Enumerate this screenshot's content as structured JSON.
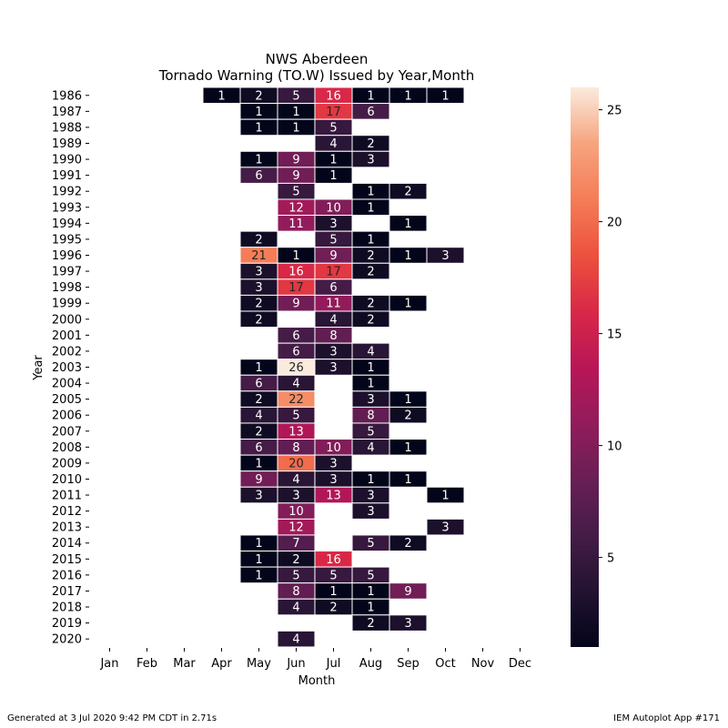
{
  "chart_data": {
    "type": "heatmap",
    "title": "NWS Aberdeen",
    "subtitle": "Tornado Warning (TO.W) Issued by Year,Month",
    "xlabel": "Month",
    "ylabel": "Year",
    "months": [
      "Jan",
      "Feb",
      "Mar",
      "Apr",
      "May",
      "Jun",
      "Jul",
      "Aug",
      "Sep",
      "Oct",
      "Nov",
      "Dec"
    ],
    "years": [
      1986,
      1987,
      1988,
      1989,
      1990,
      1991,
      1992,
      1993,
      1994,
      1995,
      1996,
      1997,
      1998,
      1999,
      2000,
      2001,
      2002,
      2003,
      2004,
      2005,
      2006,
      2007,
      2008,
      2009,
      2010,
      2011,
      2012,
      2013,
      2014,
      2015,
      2016,
      2017,
      2018,
      2019,
      2020
    ],
    "values": [
      [
        null,
        null,
        null,
        1,
        2,
        5,
        16,
        1,
        1,
        1,
        null,
        null
      ],
      [
        null,
        null,
        null,
        null,
        1,
        1,
        17,
        6,
        null,
        null,
        null,
        null
      ],
      [
        null,
        null,
        null,
        null,
        1,
        1,
        5,
        null,
        null,
        null,
        null,
        null
      ],
      [
        null,
        null,
        null,
        null,
        null,
        null,
        4,
        2,
        null,
        null,
        null,
        null
      ],
      [
        null,
        null,
        null,
        null,
        1,
        9,
        1,
        3,
        null,
        null,
        null,
        null
      ],
      [
        null,
        null,
        null,
        null,
        6,
        9,
        1,
        null,
        null,
        null,
        null,
        null
      ],
      [
        null,
        null,
        null,
        null,
        null,
        5,
        null,
        1,
        2,
        null,
        null,
        null
      ],
      [
        null,
        null,
        null,
        null,
        null,
        12,
        10,
        1,
        null,
        null,
        null,
        null
      ],
      [
        null,
        null,
        null,
        null,
        null,
        11,
        3,
        null,
        1,
        null,
        null,
        null
      ],
      [
        null,
        null,
        null,
        null,
        2,
        null,
        5,
        1,
        null,
        null,
        null,
        null
      ],
      [
        null,
        null,
        null,
        null,
        21,
        1,
        9,
        2,
        1,
        3,
        null,
        null
      ],
      [
        null,
        null,
        null,
        null,
        3,
        16,
        17,
        2,
        null,
        null,
        null,
        null
      ],
      [
        null,
        null,
        null,
        null,
        3,
        17,
        6,
        null,
        null,
        null,
        null,
        null
      ],
      [
        null,
        null,
        null,
        null,
        2,
        9,
        11,
        2,
        1,
        null,
        null,
        null
      ],
      [
        null,
        null,
        null,
        null,
        2,
        null,
        4,
        2,
        null,
        null,
        null,
        null
      ],
      [
        null,
        null,
        null,
        null,
        null,
        6,
        8,
        null,
        null,
        null,
        null,
        null
      ],
      [
        null,
        null,
        null,
        null,
        null,
        6,
        3,
        4,
        null,
        null,
        null,
        null
      ],
      [
        null,
        null,
        null,
        null,
        1,
        26,
        3,
        1,
        null,
        null,
        null,
        null
      ],
      [
        null,
        null,
        null,
        null,
        6,
        4,
        null,
        1,
        null,
        null,
        null,
        null
      ],
      [
        null,
        null,
        null,
        null,
        2,
        22,
        null,
        3,
        1,
        null,
        null,
        null
      ],
      [
        null,
        null,
        null,
        null,
        4,
        5,
        null,
        8,
        2,
        null,
        null,
        null
      ],
      [
        null,
        null,
        null,
        null,
        2,
        13,
        null,
        5,
        null,
        null,
        null,
        null
      ],
      [
        null,
        null,
        null,
        null,
        6,
        8,
        10,
        4,
        1,
        null,
        null,
        null
      ],
      [
        null,
        null,
        null,
        null,
        1,
        20,
        3,
        null,
        null,
        null,
        null,
        null
      ],
      [
        null,
        null,
        null,
        null,
        9,
        4,
        3,
        1,
        1,
        null,
        null,
        null
      ],
      [
        null,
        null,
        null,
        null,
        3,
        3,
        13,
        3,
        null,
        1,
        null,
        null
      ],
      [
        null,
        null,
        null,
        null,
        null,
        10,
        null,
        3,
        null,
        null,
        null,
        null
      ],
      [
        null,
        null,
        null,
        null,
        null,
        12,
        null,
        null,
        null,
        3,
        null,
        null
      ],
      [
        null,
        null,
        null,
        null,
        1,
        7,
        null,
        5,
        2,
        null,
        null,
        null
      ],
      [
        null,
        null,
        null,
        null,
        1,
        2,
        16,
        null,
        null,
        null,
        null,
        null
      ],
      [
        null,
        null,
        null,
        null,
        1,
        5,
        5,
        5,
        null,
        null,
        null,
        null
      ],
      [
        null,
        null,
        null,
        null,
        null,
        8,
        1,
        1,
        9,
        null,
        null,
        null
      ],
      [
        null,
        null,
        null,
        null,
        null,
        4,
        2,
        1,
        null,
        null,
        null,
        null
      ],
      [
        null,
        null,
        null,
        null,
        null,
        null,
        null,
        2,
        3,
        null,
        null,
        null
      ],
      [
        null,
        null,
        null,
        null,
        null,
        4,
        null,
        null,
        null,
        null,
        null,
        null
      ]
    ],
    "colorbar": {
      "min": 1,
      "max": 26,
      "ticks": [
        5,
        10,
        15,
        20,
        25
      ],
      "colormap": "rocket"
    },
    "grid": false,
    "legend": "right colorbar"
  },
  "footer": {
    "left": "Generated at 3 Jul 2020 9:42 PM CDT in 2.71s",
    "right": "IEM Autoplot App #171"
  }
}
